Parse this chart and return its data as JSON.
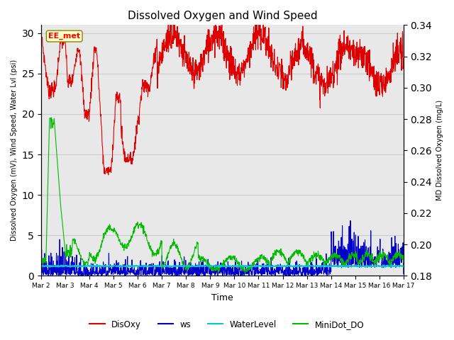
{
  "title": "Dissolved Oxygen and Wind Speed",
  "xlabel": "Time",
  "ylabel_left": "Dissolved Oxygen (mV), Wind Speed, Water Lvl (psi)",
  "ylabel_right": "MD Dissolved Oxygen (mg/L)",
  "annotation_text": "EE_met",
  "ylim_left": [
    0,
    31
  ],
  "ylim_right": [
    0.18,
    0.34
  ],
  "yticks_left": [
    0,
    5,
    10,
    15,
    20,
    25,
    30
  ],
  "yticks_right": [
    0.18,
    0.2,
    0.22,
    0.24,
    0.26,
    0.28,
    0.3,
    0.32,
    0.34
  ],
  "xtick_labels": [
    "Mar 2",
    "Mar 3",
    "Mar 4",
    "Mar 5",
    "Mar 6",
    "Mar 7",
    "Mar 8",
    "Mar 9",
    "Mar 10",
    "Mar 11",
    "Mar 12",
    "Mar 13",
    "Mar 14",
    "Mar 15",
    "Mar 16",
    "Mar 17"
  ],
  "colors": {
    "DisOxy": "#dd0000",
    "ws": "#0000cc",
    "WaterLevel": "#00cccc",
    "MiniDot_DO": "#00bb00"
  },
  "grid_color": "#cccccc",
  "bg_color": "#e8e8e8",
  "legend_labels": [
    "DisOxy",
    "ws",
    "WaterLevel",
    "MiniDot_DO"
  ],
  "n_days": 15,
  "pts_per_day": 96
}
